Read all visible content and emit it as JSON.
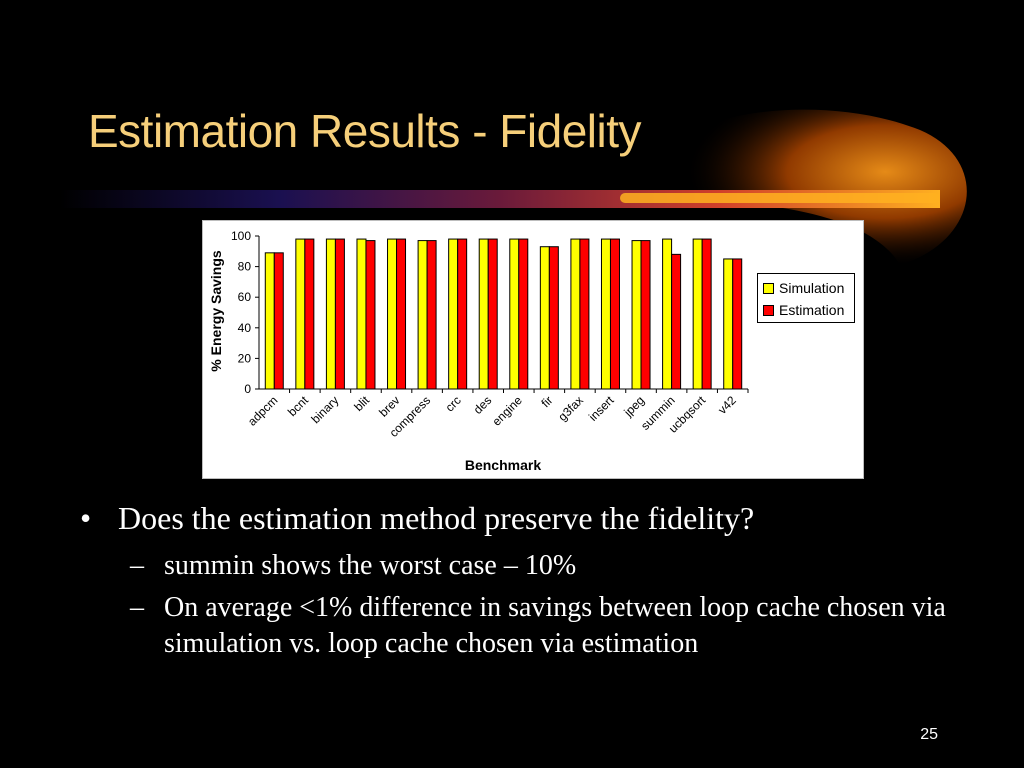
{
  "slide": {
    "title": "Estimation Results - Fidelity",
    "page_number": "25",
    "colors": {
      "background": "#000000",
      "title": "#f6cf7a",
      "swoosh": "#ff9a1a"
    }
  },
  "bullets": {
    "main": {
      "mark": "•",
      "text": "Does the estimation method preserve the fidelity?"
    },
    "sub": [
      {
        "mark": "–",
        "text": "summin shows the worst case – 10%"
      },
      {
        "mark": "–",
        "text": "On average <1% difference in savings between loop cache chosen via simulation vs. loop cache chosen via estimation"
      }
    ]
  },
  "chart_data": {
    "type": "bar",
    "xlabel": "Benchmark",
    "ylabel": "% Energy Savings",
    "ylim": [
      0,
      100
    ],
    "yticks": [
      0,
      20,
      40,
      60,
      80,
      100
    ],
    "grid": false,
    "legend_position": "right",
    "categories": [
      "adpcm",
      "bcnt",
      "binary",
      "blit",
      "brev",
      "compress",
      "crc",
      "des",
      "engine",
      "fir",
      "g3fax",
      "insert",
      "jpeg",
      "summin",
      "ucbqsort",
      "v42"
    ],
    "series": [
      {
        "name": "Simulation",
        "color": "#ffff00",
        "values": [
          89,
          98,
          98,
          98,
          98,
          97,
          98,
          98,
          98,
          93,
          98,
          98,
          97,
          98,
          98,
          85
        ]
      },
      {
        "name": "Estimation",
        "color": "#ff0000",
        "values": [
          89,
          98,
          98,
          97,
          98,
          97,
          98,
          98,
          98,
          93,
          98,
          98,
          97,
          88,
          98,
          85
        ]
      }
    ]
  }
}
